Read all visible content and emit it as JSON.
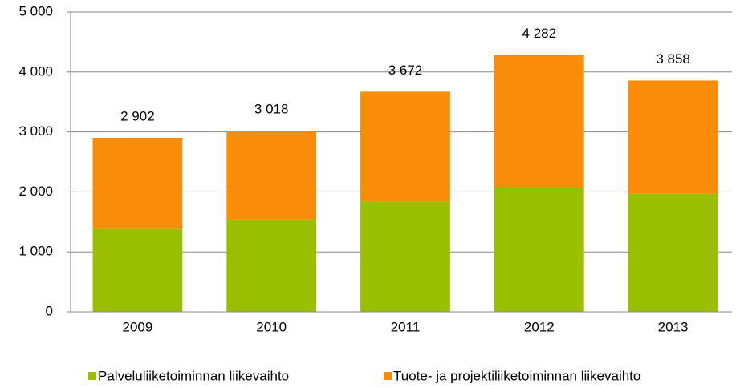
{
  "chart_data": {
    "type": "stacked_bar",
    "categories": [
      "2009",
      "2010",
      "2011",
      "2012",
      "2013"
    ],
    "series": [
      {
        "name": "Palveluliiketoiminnan liikevaihto",
        "color": "#99bf00",
        "values": [
          1380,
          1540,
          1840,
          2070,
          1970
        ]
      },
      {
        "name": "Tuote- ja projektiliiketoiminnan liikevaihto",
        "color": "#f98c08",
        "values": [
          1522,
          1478,
          1832,
          2212,
          1888
        ]
      }
    ],
    "total_labels": [
      "2 902",
      "3 018",
      "3 672",
      "4 282",
      "3 858"
    ],
    "ylim": [
      0,
      5000
    ],
    "yticks": [
      0,
      {
        "value": 1000,
        "label": "1 000"
      },
      {
        "value": 2000,
        "label": "2 000"
      },
      {
        "value": 3000,
        "label": "3 000"
      },
      {
        "value": 4000,
        "label": "4 000"
      },
      {
        "value": 5000,
        "label": "5 000"
      }
    ],
    "grid": true,
    "legend": "bottom"
  }
}
